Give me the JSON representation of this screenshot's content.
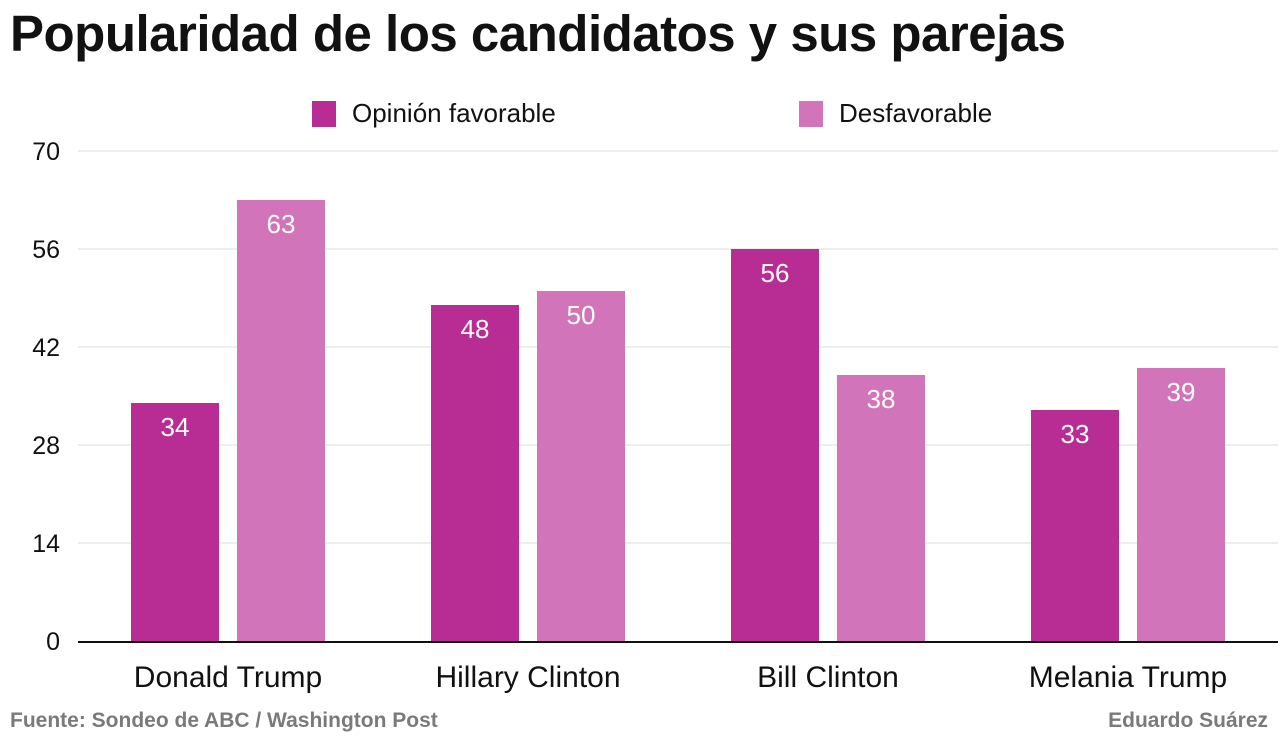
{
  "chart_data": {
    "type": "bar",
    "title": "Popularidad de los candidatos y sus parejas",
    "categories": [
      "Donald Trump",
      "Hillary Clinton",
      "Bill Clinton",
      "Melania Trump"
    ],
    "series": [
      {
        "name": "Opinión favorable",
        "color": "#b72d94",
        "values": [
          34,
          48,
          56,
          33
        ]
      },
      {
        "name": "Desfavorable",
        "color": "#d274b9",
        "values": [
          63,
          50,
          38,
          39
        ]
      }
    ],
    "xlabel": "",
    "ylabel": "",
    "ylim": [
      0,
      70
    ],
    "yticks": [
      0,
      14,
      28,
      42,
      56,
      70
    ],
    "grid": true,
    "legend_position": "top"
  },
  "footer": {
    "source": "Fuente: Sondeo de ABC / Washington Post",
    "author": "Eduardo Suárez"
  }
}
